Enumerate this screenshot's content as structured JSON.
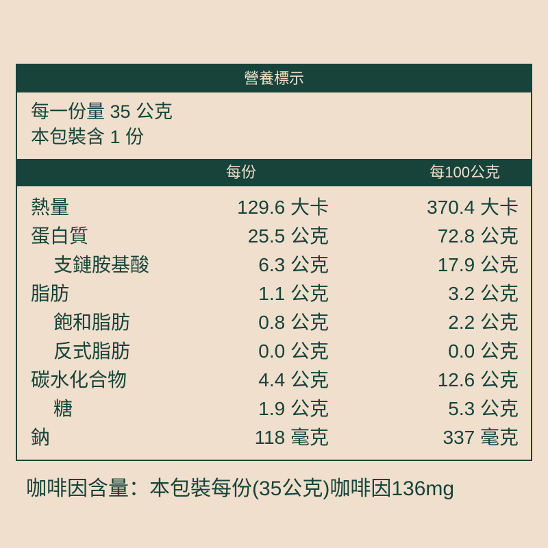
{
  "title": "營養標示",
  "serving_size": "每一份量 35 公克",
  "servings_per_package": "本包裝含 1 份",
  "columns": {
    "per_serving": "每份",
    "per_100g": "每100公克"
  },
  "rows": [
    {
      "name": "熱量",
      "per_serving": "129.6 大卡",
      "per_100g": "370.4 大卡",
      "indent": false
    },
    {
      "name": "蛋白質",
      "per_serving": "25.5 公克",
      "per_100g": "72.8 公克",
      "indent": false
    },
    {
      "name": "支鏈胺基酸",
      "per_serving": "6.3 公克",
      "per_100g": "17.9 公克",
      "indent": true
    },
    {
      "name": "脂肪",
      "per_serving": "1.1 公克",
      "per_100g": "3.2 公克",
      "indent": false
    },
    {
      "name": "飽和脂肪",
      "per_serving": "0.8 公克",
      "per_100g": "2.2 公克",
      "indent": true
    },
    {
      "name": "反式脂肪",
      "per_serving": "0.0 公克",
      "per_100g": "0.0 公克",
      "indent": true
    },
    {
      "name": "碳水化合物",
      "per_serving": "4.4 公克",
      "per_100g": "12.6 公克",
      "indent": false
    },
    {
      "name": "糖",
      "per_serving": "1.9 公克",
      "per_100g": "5.3 公克",
      "indent": true
    },
    {
      "name": "鈉",
      "per_serving": "118 毫克",
      "per_100g": "337 毫克",
      "indent": false
    }
  ],
  "footer": "咖啡因含量：本包裝每份(35公克)咖啡因136mg",
  "colors": {
    "background": "#efdfcc",
    "accent": "#17433a"
  }
}
